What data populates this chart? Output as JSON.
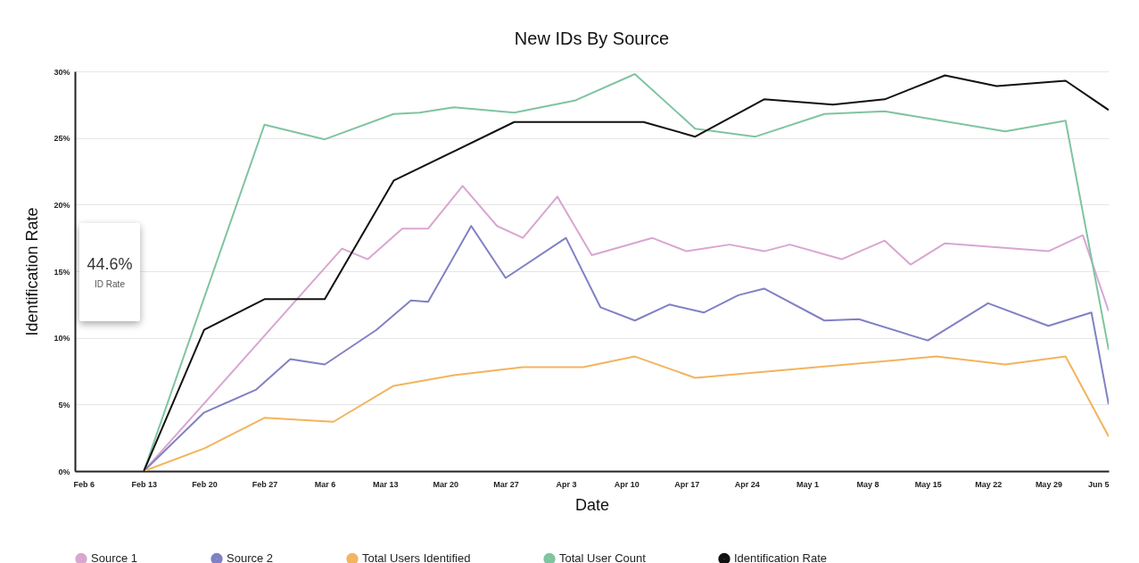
{
  "chart_data": {
    "type": "line",
    "title": "New IDs By Source",
    "xlabel": "Date",
    "ylabel": "Identification Rate",
    "annotations": [
      "44.6%",
      "ID Rate"
    ],
    "xlim": [
      "--02-05",
      "--06-05"
    ],
    "xticks": [
      {
        "value": "--02-06",
        "label": "Feb 6"
      },
      {
        "value": "--02-13",
        "label": "Feb 13"
      },
      {
        "value": "--02-20",
        "label": "Feb 20"
      },
      {
        "value": "--02-27",
        "label": "Feb 27"
      },
      {
        "value": "--03-06",
        "label": "Mar 6"
      },
      {
        "value": "--03-13",
        "label": "Mar 13"
      },
      {
        "value": "--03-20",
        "label": "Mar 20"
      },
      {
        "value": "--03-27",
        "label": "Mar 27"
      },
      {
        "value": "--04-03",
        "label": "Apr 3"
      },
      {
        "value": "--04-10",
        "label": "Apr 10"
      },
      {
        "value": "--04-17",
        "label": "Apr 17"
      },
      {
        "value": "--04-24",
        "label": "Apr 24"
      },
      {
        "value": "--05-01",
        "label": "May 1"
      },
      {
        "value": "--05-08",
        "label": "May 8"
      },
      {
        "value": "--05-15",
        "label": "May 15"
      },
      {
        "value": "--05-22",
        "label": "May 22"
      },
      {
        "value": "--05-29",
        "label": "May 29"
      },
      {
        "value": "--06-05",
        "label": "Jun 5"
      }
    ],
    "ylim": [
      0,
      30
    ],
    "yticks": [
      {
        "value": 0,
        "label": "0%"
      },
      {
        "value": 5,
        "label": "5%"
      },
      {
        "value": 10,
        "label": "10%"
      },
      {
        "value": 15,
        "label": "15%"
      },
      {
        "value": 20,
        "label": "20%"
      },
      {
        "value": 25,
        "label": "25%"
      },
      {
        "value": 30,
        "label": "30%"
      }
    ],
    "grid": "y",
    "legend": "bottom",
    "marker": "none",
    "line_style": "solid",
    "series": [
      {
        "name": "Source 1",
        "color": "#d9a6d0",
        "x": [
          "--02-13",
          "--03-08",
          "--03-11",
          "--03-15",
          "--03-18",
          "--03-22",
          "--03-26",
          "--03-29",
          "--04-02",
          "--04-06",
          "--04-13",
          "--04-17",
          "--04-22",
          "--04-26",
          "--04-29",
          "--05-05",
          "--05-10",
          "--05-13",
          "--05-17",
          "--05-29",
          "--06-02",
          "--06-05"
        ],
        "values": [
          0,
          16.7,
          15.9,
          18.2,
          18.2,
          21.4,
          18.4,
          17.5,
          20.6,
          16.2,
          17.5,
          16.5,
          17.0,
          16.5,
          17.0,
          15.9,
          17.3,
          15.5,
          17.1,
          16.5,
          17.7,
          12.0
        ]
      },
      {
        "name": "Source 2",
        "color": "#8081c4",
        "x": [
          "--02-13",
          "--02-20",
          "--02-26",
          "--03-02",
          "--03-06",
          "--03-12",
          "--03-16",
          "--03-18",
          "--03-23",
          "--03-27",
          "--04-03",
          "--04-07",
          "--04-11",
          "--04-15",
          "--04-19",
          "--04-23",
          "--04-26",
          "--05-03",
          "--05-07",
          "--05-15",
          "--05-22",
          "--05-29",
          "--06-03",
          "--06-05"
        ],
        "values": [
          0,
          4.4,
          6.1,
          8.4,
          8.0,
          10.6,
          12.8,
          12.7,
          18.4,
          14.5,
          17.5,
          12.3,
          11.3,
          12.5,
          11.9,
          13.2,
          13.7,
          11.3,
          11.4,
          9.8,
          12.6,
          10.9,
          11.9,
          5.0
        ]
      },
      {
        "name": "Total Users Identified",
        "color": "#f2b45e",
        "x": [
          "--02-13",
          "--02-20",
          "--02-27",
          "--03-07",
          "--03-14",
          "--03-21",
          "--03-29",
          "--04-05",
          "--04-11",
          "--04-18",
          "--05-16",
          "--05-24",
          "--05-31",
          "--06-05"
        ],
        "values": [
          0,
          1.7,
          4.0,
          3.7,
          6.4,
          7.2,
          7.8,
          7.8,
          8.6,
          7.0,
          8.6,
          8.0,
          8.6,
          2.6
        ]
      },
      {
        "name": "Total User Count",
        "color": "#7fc4a0",
        "x": [
          "--02-13",
          "--02-27",
          "--03-06",
          "--03-14",
          "--03-17",
          "--03-21",
          "--03-28",
          "--04-04",
          "--04-11",
          "--04-18",
          "--04-25",
          "--05-03",
          "--05-10",
          "--05-24",
          "--05-31",
          "--06-05"
        ],
        "values": [
          0,
          26.0,
          24.9,
          26.8,
          26.9,
          27.3,
          26.9,
          27.8,
          29.8,
          25.7,
          25.1,
          26.8,
          27.0,
          25.5,
          26.3,
          9.1
        ]
      },
      {
        "name": "Identification Rate",
        "color": "#111111",
        "x": [
          "--02-13",
          "--02-20",
          "--02-27",
          "--03-06",
          "--03-14",
          "--03-28",
          "--04-12",
          "--04-18",
          "--04-26",
          "--05-04",
          "--05-10",
          "--05-17",
          "--05-23",
          "--05-31",
          "--06-05"
        ],
        "values": [
          0,
          10.6,
          12.9,
          12.9,
          21.8,
          26.2,
          26.2,
          25.1,
          27.9,
          27.5,
          27.9,
          29.7,
          28.9,
          29.3,
          27.1
        ]
      }
    ]
  }
}
